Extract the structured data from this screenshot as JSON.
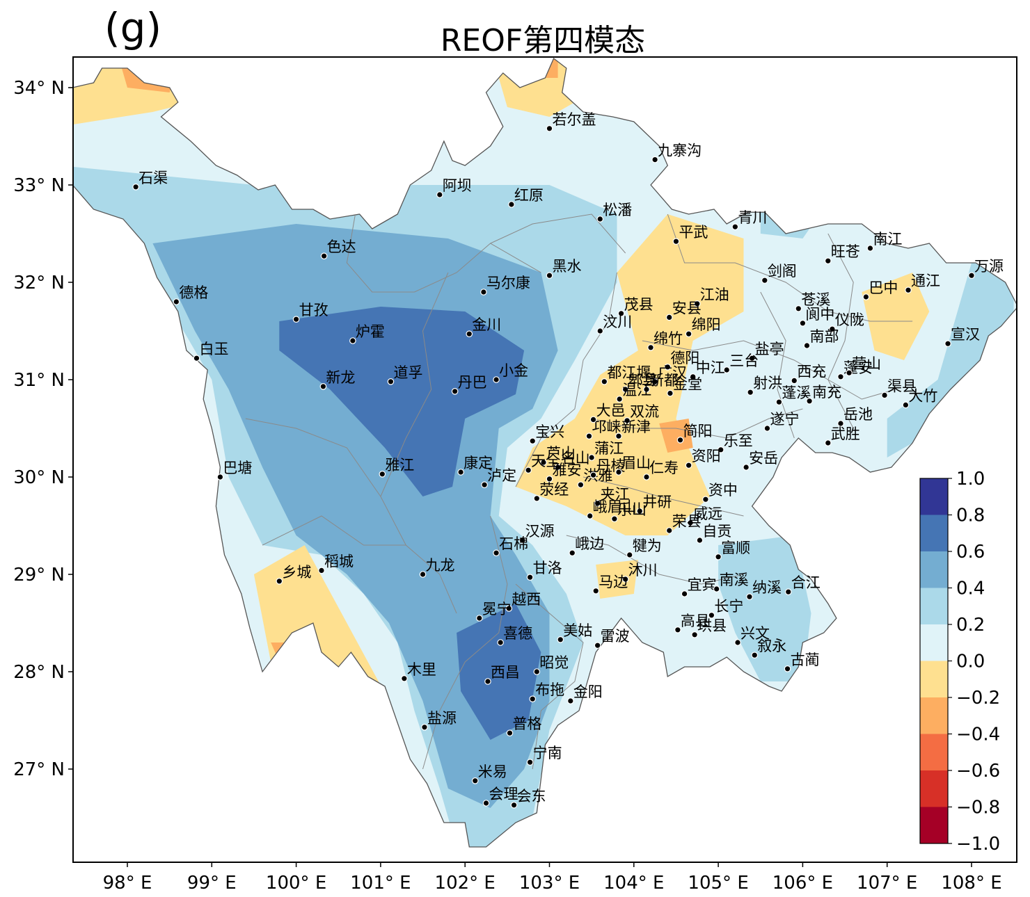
{
  "panel_label": "(g)",
  "title": "REOF第四模态",
  "lat_ticks": [
    "27° N",
    "28° N",
    "29° N",
    "30° N",
    "31° N",
    "32° N",
    "33° N",
    "34° N"
  ],
  "lon_ticks": [
    "98° E",
    "99° E",
    "100° E",
    "101° E",
    "102° E",
    "103° E",
    "104° E",
    "105° E",
    "106° E",
    "107° E",
    "108° E"
  ],
  "colorbar": {
    "ticks": [
      "1.0",
      "0.8",
      "0.6",
      "0.4",
      "0.2",
      "0.0",
      "−0.2",
      "−0.4",
      "−0.6",
      "−0.8",
      "−1.0"
    ],
    "colors": [
      "#313695",
      "#4575b4",
      "#74add1",
      "#abd9e9",
      "#e0f3f8",
      "#fee090",
      "#fdae61",
      "#f46d43",
      "#d73027",
      "#a50026"
    ]
  },
  "stations": [
    {
      "name": "若尔盖",
      "lon": 103.0,
      "lat": 33.58
    },
    {
      "name": "九寨沟",
      "lon": 104.25,
      "lat": 33.26
    },
    {
      "name": "石渠",
      "lon": 98.1,
      "lat": 32.98
    },
    {
      "name": "阿坝",
      "lon": 101.7,
      "lat": 32.9
    },
    {
      "name": "红原",
      "lon": 102.55,
      "lat": 32.8
    },
    {
      "name": "松潘",
      "lon": 103.6,
      "lat": 32.65
    },
    {
      "name": "青川",
      "lon": 105.2,
      "lat": 32.57
    },
    {
      "name": "平武",
      "lon": 104.5,
      "lat": 32.42
    },
    {
      "name": "南江",
      "lon": 106.8,
      "lat": 32.35
    },
    {
      "name": "旺苍",
      "lon": 106.3,
      "lat": 32.22
    },
    {
      "name": "色达",
      "lon": 100.33,
      "lat": 32.27
    },
    {
      "name": "黑水",
      "lon": 103.0,
      "lat": 32.07
    },
    {
      "name": "万源",
      "lon": 108.0,
      "lat": 32.07
    },
    {
      "name": "剑阁",
      "lon": 105.55,
      "lat": 32.02
    },
    {
      "name": "马尔康",
      "lon": 102.22,
      "lat": 31.9
    },
    {
      "name": "通江",
      "lon": 107.25,
      "lat": 31.92
    },
    {
      "name": "德格",
      "lon": 98.58,
      "lat": 31.8
    },
    {
      "name": "巴中",
      "lon": 106.75,
      "lat": 31.85
    },
    {
      "name": "江油",
      "lon": 104.75,
      "lat": 31.78
    },
    {
      "name": "茂县",
      "lon": 103.85,
      "lat": 31.68
    },
    {
      "name": "安县",
      "lon": 104.42,
      "lat": 31.64
    },
    {
      "name": "苍溪",
      "lon": 105.95,
      "lat": 31.73
    },
    {
      "name": "甘孜",
      "lon": 100.0,
      "lat": 31.62
    },
    {
      "name": "阆中",
      "lon": 106.0,
      "lat": 31.58
    },
    {
      "name": "仪陇",
      "lon": 106.35,
      "lat": 31.52
    },
    {
      "name": "汶川",
      "lon": 103.6,
      "lat": 31.5
    },
    {
      "name": "绵阳",
      "lon": 104.65,
      "lat": 31.47
    },
    {
      "name": "金川",
      "lon": 102.05,
      "lat": 31.47
    },
    {
      "name": "炉霍",
      "lon": 100.67,
      "lat": 31.4
    },
    {
      "name": "绵竹",
      "lon": 104.2,
      "lat": 31.33
    },
    {
      "name": "南部",
      "lon": 106.05,
      "lat": 31.35
    },
    {
      "name": "宣汉",
      "lon": 107.72,
      "lat": 31.37
    },
    {
      "name": "盐亭",
      "lon": 105.4,
      "lat": 31.22
    },
    {
      "name": "白玉",
      "lon": 98.82,
      "lat": 31.22
    },
    {
      "name": "德阳",
      "lon": 104.4,
      "lat": 31.13
    },
    {
      "name": "三台",
      "lon": 105.1,
      "lat": 31.1
    },
    {
      "name": "中江",
      "lon": 104.7,
      "lat": 31.03
    },
    {
      "name": "蓬安",
      "lon": 106.45,
      "lat": 31.03
    },
    {
      "name": "营山",
      "lon": 106.55,
      "lat": 31.07
    },
    {
      "name": "都江堰",
      "lon": 103.65,
      "lat": 30.98
    },
    {
      "name": "广汉",
      "lon": 104.25,
      "lat": 30.98
    },
    {
      "name": "西充",
      "lon": 105.9,
      "lat": 30.99
    },
    {
      "name": "小金",
      "lon": 102.37,
      "lat": 31.0
    },
    {
      "name": "道孚",
      "lon": 101.12,
      "lat": 30.98
    },
    {
      "name": "新龙",
      "lon": 100.32,
      "lat": 30.93
    },
    {
      "name": "郫县",
      "lon": 103.9,
      "lat": 30.9
    },
    {
      "name": "新都",
      "lon": 104.15,
      "lat": 30.9
    },
    {
      "name": "金堂",
      "lon": 104.43,
      "lat": 30.86
    },
    {
      "name": "丹巴",
      "lon": 101.88,
      "lat": 30.88
    },
    {
      "name": "射洪",
      "lon": 105.38,
      "lat": 30.87
    },
    {
      "name": "渠县",
      "lon": 106.97,
      "lat": 30.84
    },
    {
      "name": "温江",
      "lon": 103.83,
      "lat": 30.8
    },
    {
      "name": "大竹",
      "lon": 107.22,
      "lat": 30.74
    },
    {
      "name": "蓬溪",
      "lon": 105.72,
      "lat": 30.77
    },
    {
      "name": "南充",
      "lon": 106.08,
      "lat": 30.78
    },
    {
      "name": "双流",
      "lon": 103.92,
      "lat": 30.58
    },
    {
      "name": "邛崃",
      "lon": 103.47,
      "lat": 30.42
    },
    {
      "name": "大邑",
      "lon": 103.52,
      "lat": 30.59
    },
    {
      "name": "新津",
      "lon": 103.82,
      "lat": 30.42
    },
    {
      "name": "遂宁",
      "lon": 105.58,
      "lat": 30.5
    },
    {
      "name": "岳池",
      "lon": 106.45,
      "lat": 30.55
    },
    {
      "name": "简阳",
      "lon": 104.55,
      "lat": 30.38
    },
    {
      "name": "宝兴",
      "lon": 102.8,
      "lat": 30.37
    },
    {
      "name": "武胜",
      "lon": 106.3,
      "lat": 30.35
    },
    {
      "name": "蒲江",
      "lon": 103.5,
      "lat": 30.2
    },
    {
      "name": "乐至",
      "lon": 105.03,
      "lat": 30.28
    },
    {
      "name": "芦山",
      "lon": 102.93,
      "lat": 30.15
    },
    {
      "name": "名山",
      "lon": 103.1,
      "lat": 30.1
    },
    {
      "name": "天全",
      "lon": 102.75,
      "lat": 30.07
    },
    {
      "name": "安岳",
      "lon": 105.33,
      "lat": 30.1
    },
    {
      "name": "雅安",
      "lon": 103.0,
      "lat": 29.98
    },
    {
      "name": "仁寿",
      "lon": 104.15,
      "lat": 30.0
    },
    {
      "name": "资阳",
      "lon": 104.65,
      "lat": 30.12
    },
    {
      "name": "洪雅",
      "lon": 103.37,
      "lat": 29.92
    },
    {
      "name": "荥经",
      "lon": 102.85,
      "lat": 29.78
    },
    {
      "name": "雅江",
      "lon": 101.02,
      "lat": 30.03
    },
    {
      "name": "康定",
      "lon": 101.95,
      "lat": 30.05
    },
    {
      "name": "泸定",
      "lon": 102.23,
      "lat": 29.92
    },
    {
      "name": "巴塘",
      "lon": 99.1,
      "lat": 30.0
    },
    {
      "name": "资中",
      "lon": 104.85,
      "lat": 29.77
    },
    {
      "name": "丹棱",
      "lon": 103.52,
      "lat": 30.02
    },
    {
      "name": "眉山",
      "lon": 103.82,
      "lat": 30.05
    },
    {
      "name": "夹江",
      "lon": 103.57,
      "lat": 29.73
    },
    {
      "name": "井研",
      "lon": 104.07,
      "lat": 29.65
    },
    {
      "name": "峨眉山",
      "lon": 103.48,
      "lat": 29.6
    },
    {
      "name": "乐山",
      "lon": 103.77,
      "lat": 29.57
    },
    {
      "name": "汉源",
      "lon": 102.68,
      "lat": 29.35
    },
    {
      "name": "威远",
      "lon": 104.67,
      "lat": 29.53
    },
    {
      "name": "荣县",
      "lon": 104.42,
      "lat": 29.45
    },
    {
      "name": "自贡",
      "lon": 104.78,
      "lat": 29.35
    },
    {
      "name": "峨边",
      "lon": 103.27,
      "lat": 29.22
    },
    {
      "name": "石棉",
      "lon": 102.37,
      "lat": 29.22
    },
    {
      "name": "犍为",
      "lon": 103.95,
      "lat": 29.2
    },
    {
      "name": "富顺",
      "lon": 105.0,
      "lat": 29.18
    },
    {
      "name": "稻城",
      "lon": 100.3,
      "lat": 29.04
    },
    {
      "name": "乡城",
      "lon": 99.8,
      "lat": 28.93
    },
    {
      "name": "九龙",
      "lon": 101.5,
      "lat": 29.0
    },
    {
      "name": "沐川",
      "lon": 103.9,
      "lat": 28.95
    },
    {
      "name": "甘洛",
      "lon": 102.77,
      "lat": 28.97
    },
    {
      "name": "马边",
      "lon": 103.55,
      "lat": 28.83
    },
    {
      "name": "宜宾",
      "lon": 104.6,
      "lat": 28.8
    },
    {
      "name": "南溪",
      "lon": 104.98,
      "lat": 28.85
    },
    {
      "name": "纳溪",
      "lon": 105.37,
      "lat": 28.77
    },
    {
      "name": "合江",
      "lon": 105.83,
      "lat": 28.82
    },
    {
      "name": "越西",
      "lon": 102.52,
      "lat": 28.65
    },
    {
      "name": "长宁",
      "lon": 104.92,
      "lat": 28.58
    },
    {
      "name": "冕宁",
      "lon": 102.17,
      "lat": 28.55
    },
    {
      "name": "高县",
      "lon": 104.52,
      "lat": 28.43
    },
    {
      "name": "珙县",
      "lon": 104.72,
      "lat": 28.38
    },
    {
      "name": "美姑",
      "lon": 103.13,
      "lat": 28.33
    },
    {
      "name": "兴文",
      "lon": 105.23,
      "lat": 28.3
    },
    {
      "name": "喜德",
      "lon": 102.42,
      "lat": 28.3
    },
    {
      "name": "雷波",
      "lon": 103.57,
      "lat": 28.27
    },
    {
      "name": "叙永",
      "lon": 105.43,
      "lat": 28.17
    },
    {
      "name": "古蔺",
      "lon": 105.82,
      "lat": 28.03
    },
    {
      "name": "昭觉",
      "lon": 102.85,
      "lat": 28.0
    },
    {
      "name": "木里",
      "lon": 101.28,
      "lat": 27.93
    },
    {
      "name": "西昌",
      "lon": 102.27,
      "lat": 27.9
    },
    {
      "name": "布拖",
      "lon": 102.8,
      "lat": 27.72
    },
    {
      "name": "金阳",
      "lon": 103.25,
      "lat": 27.7
    },
    {
      "name": "盐源",
      "lon": 101.52,
      "lat": 27.43
    },
    {
      "name": "普格",
      "lon": 102.53,
      "lat": 27.37
    },
    {
      "name": "宁南",
      "lon": 102.77,
      "lat": 27.07
    },
    {
      "name": "米易",
      "lon": 102.12,
      "lat": 26.88
    },
    {
      "name": "会理",
      "lon": 102.25,
      "lat": 26.65
    },
    {
      "name": "会东",
      "lon": 102.58,
      "lat": 26.63
    }
  ]
}
